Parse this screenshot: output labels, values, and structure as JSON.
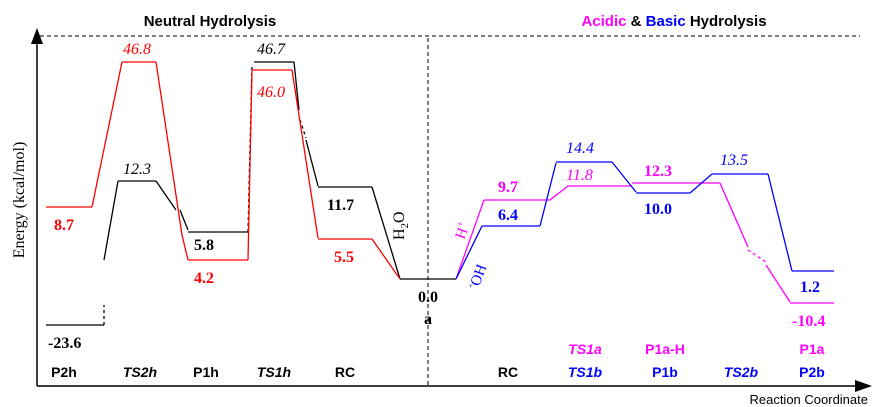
{
  "titles": {
    "neutral": "Neutral Hydrolysis",
    "acidic": "Acidic",
    "amp": " & ",
    "basic": "Basic",
    "hydrolysis": " Hydrolysis"
  },
  "axes": {
    "ylabel": "Energy (kcal/mol)",
    "xlabel": "Reaction Coordinate"
  },
  "colors": {
    "black": "#000000",
    "red": "#ff0000",
    "blue": "#0000ff",
    "magenta": "#ff00ff"
  },
  "reactant_complex": {
    "value": "0.0",
    "label": "a"
  },
  "reagents": {
    "water": [
      "H",
      "2",
      "O"
    ],
    "proton": [
      "H",
      "+"
    ],
    "hydroxide": [
      "-",
      "OH"
    ]
  },
  "neutral_energies": {
    "black": {
      "P2h": "-23.6",
      "TS2h": "12.3",
      "P1h": "5.8",
      "TS1h": "46.7",
      "RC": "11.7"
    },
    "red": {
      "P2h": "8.7",
      "TS2h": "46.8",
      "P1h": "4.2",
      "TS1h": "46.0",
      "RC": "5.5"
    }
  },
  "acidic_energies": {
    "RC": "9.7",
    "TS1a": "11.8",
    "P1a-H": "12.3",
    "P1a": "-10.4"
  },
  "basic_energies": {
    "RC": "6.4",
    "TS1b": "14.4",
    "P1b": "10.0",
    "TS2b": "13.5",
    "P2b": "1.2"
  },
  "bottom_labels": {
    "neutral": [
      "P2h",
      "TS2h",
      "P1h",
      "TS1h",
      "RC"
    ],
    "right_black": "RC",
    "acidic": [
      "TS1a",
      "P1a-H",
      "P1a"
    ],
    "basic": [
      "TS1b",
      "P1b",
      "TS2b",
      "P2b"
    ]
  }
}
